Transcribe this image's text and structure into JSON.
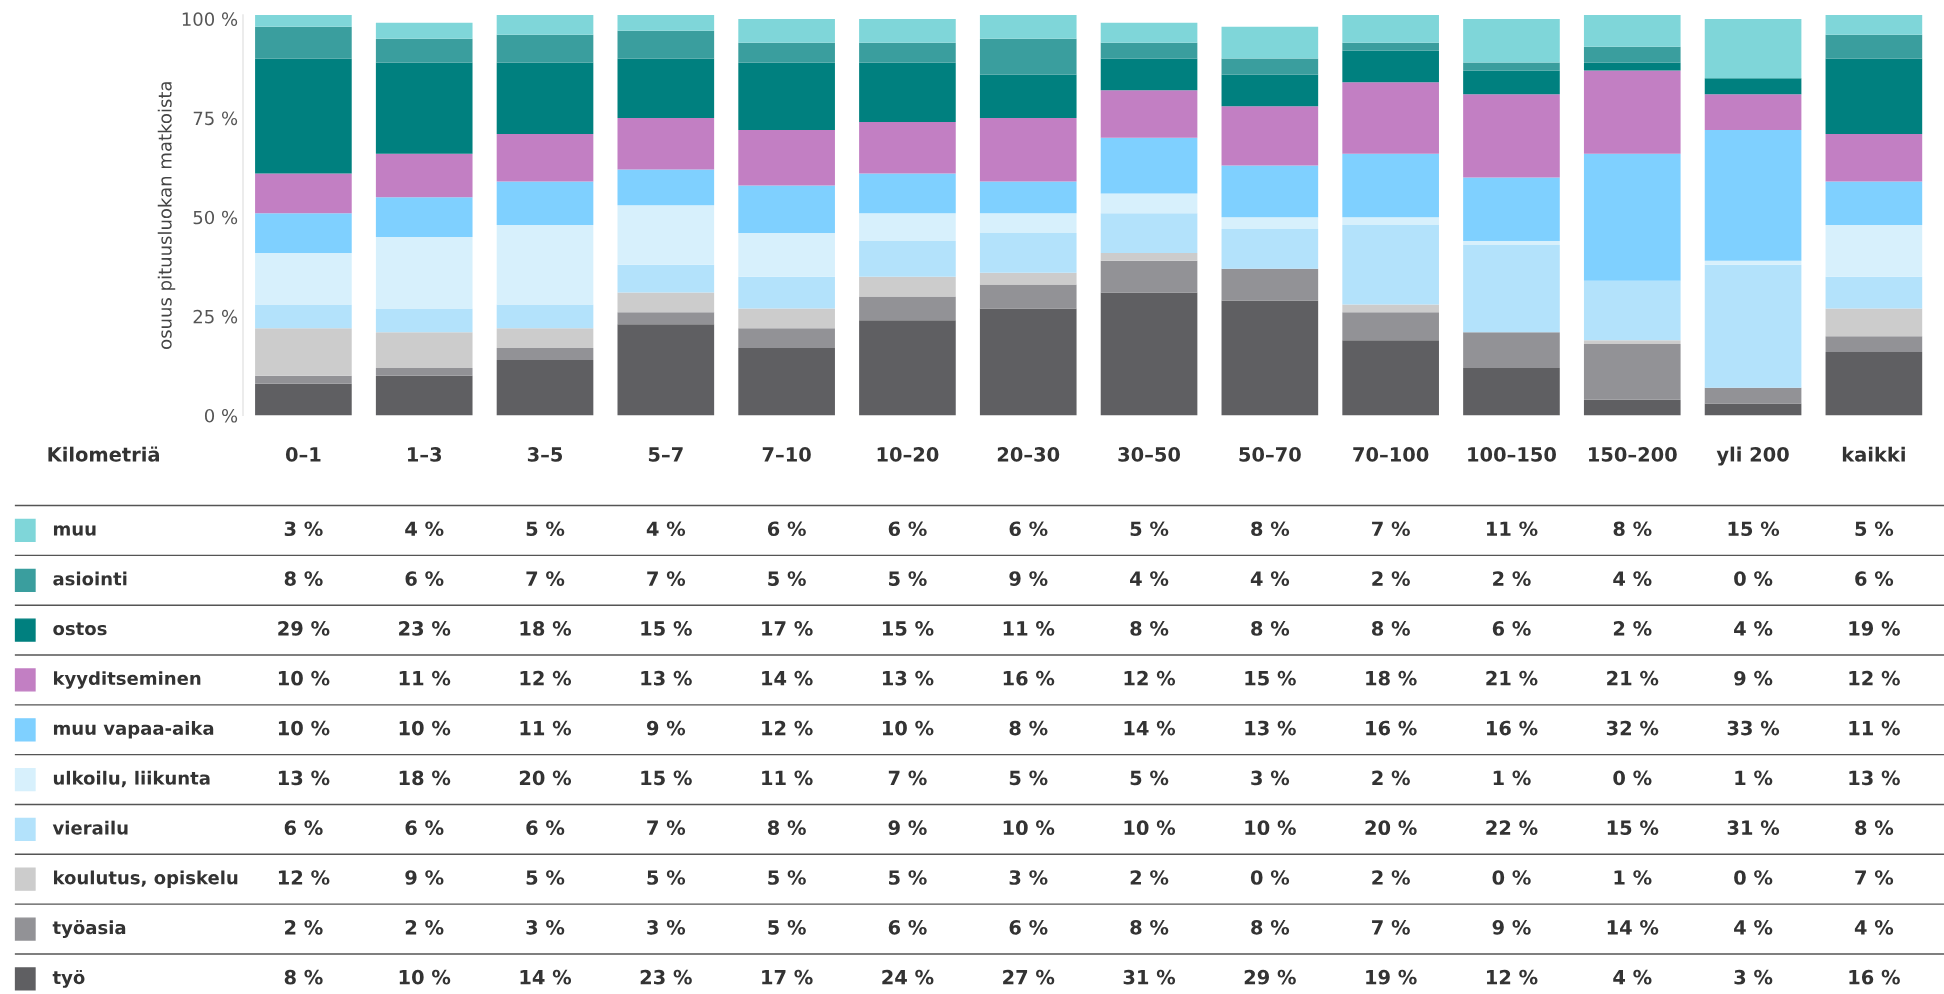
{
  "chart_data": {
    "type": "bar",
    "stacked": true,
    "ylabel": "osuus pituusluokan matkoista",
    "xlabel": "Kilometriä",
    "categories": [
      "0–1",
      "1–3",
      "3–5",
      "5–7",
      "7–10",
      "10–20",
      "20–30",
      "30–50",
      "50–70",
      "70–100",
      "100–150",
      "150–200",
      "yli 200",
      "kaikki"
    ],
    "ylim": [
      0,
      101
    ],
    "yticks": [
      {
        "value": 0,
        "label": "0 %"
      },
      {
        "value": 25,
        "label": "25 %"
      },
      {
        "value": 50,
        "label": "50 %"
      },
      {
        "value": 75,
        "label": "75 %"
      },
      {
        "value": 100,
        "label": "100 %"
      }
    ],
    "grid": false,
    "legend": "left",
    "series": [
      {
        "name": "työ",
        "color": "#5f5f62",
        "values": [
          8,
          10,
          14,
          23,
          17,
          24,
          27,
          31,
          29,
          19,
          12,
          4,
          3,
          16
        ],
        "value_labels": [
          "8 %",
          "10 %",
          "14 %",
          "23 %",
          "17 %",
          "24 %",
          "27 %",
          "31 %",
          "29 %",
          "19 %",
          "12 %",
          "4 %",
          "3 %",
          "16 %"
        ]
      },
      {
        "name": "työasia",
        "color": "#929296",
        "values": [
          2,
          2,
          3,
          3,
          5,
          6,
          6,
          8,
          8,
          7,
          9,
          14,
          4,
          4
        ],
        "value_labels": [
          "2 %",
          "2 %",
          "3 %",
          "3 %",
          "5 %",
          "6 %",
          "6 %",
          "8 %",
          "8 %",
          "7 %",
          "9 %",
          "14 %",
          "4 %",
          "4 %"
        ]
      },
      {
        "name": "koulutus, opiskelu",
        "color": "#cccccc",
        "values": [
          12,
          9,
          5,
          5,
          5,
          5,
          3,
          2,
          0,
          2,
          0,
          1,
          0,
          7
        ],
        "value_labels": [
          "12 %",
          "9 %",
          "5 %",
          "5 %",
          "5 %",
          "5 %",
          "3 %",
          "2 %",
          "0 %",
          "2 %",
          "0 %",
          "1 %",
          "0 %",
          "7 %"
        ]
      },
      {
        "name": "vierailu",
        "color": "#b3e2fb",
        "values": [
          6,
          6,
          6,
          7,
          8,
          9,
          10,
          10,
          10,
          20,
          22,
          15,
          31,
          8
        ],
        "value_labels": [
          "6 %",
          "6 %",
          "6 %",
          "7 %",
          "8 %",
          "9 %",
          "10 %",
          "10 %",
          "10 %",
          "20 %",
          "22 %",
          "15 %",
          "31 %",
          "8 %"
        ]
      },
      {
        "name": "ulkoilu, liikunta",
        "color": "#d7f0fc",
        "values": [
          13,
          18,
          20,
          15,
          11,
          7,
          5,
          5,
          3,
          2,
          1,
          0,
          1,
          13
        ],
        "value_labels": [
          "13 %",
          "18 %",
          "20 %",
          "15 %",
          "11 %",
          "7 %",
          "5 %",
          "5 %",
          "3 %",
          "2 %",
          "1 %",
          "0 %",
          "1 %",
          "13 %"
        ]
      },
      {
        "name": "muu vapaa-aika",
        "color": "#7fd0ff",
        "values": [
          10,
          10,
          11,
          9,
          12,
          10,
          8,
          14,
          13,
          16,
          16,
          32,
          33,
          11
        ],
        "value_labels": [
          "10 %",
          "10 %",
          "11 %",
          "9 %",
          "12 %",
          "10 %",
          "8 %",
          "14 %",
          "13 %",
          "16 %",
          "16 %",
          "32 %",
          "33 %",
          "11 %"
        ]
      },
      {
        "name": "kyyditseminen",
        "color": "#c27fc3",
        "values": [
          10,
          11,
          12,
          13,
          14,
          13,
          16,
          12,
          15,
          18,
          21,
          21,
          9,
          12
        ],
        "value_labels": [
          "10 %",
          "11 %",
          "12 %",
          "13 %",
          "14 %",
          "13 %",
          "16 %",
          "12 %",
          "15 %",
          "18 %",
          "21 %",
          "21 %",
          "9 %",
          "12 %"
        ]
      },
      {
        "name": "ostos",
        "color": "#00807f",
        "values": [
          29,
          23,
          18,
          15,
          17,
          15,
          11,
          8,
          8,
          8,
          6,
          2,
          4,
          19
        ],
        "value_labels": [
          "29 %",
          "23 %",
          "18 %",
          "15 %",
          "17 %",
          "15 %",
          "11 %",
          "8 %",
          "8 %",
          "8 %",
          "6 %",
          "2 %",
          "4 %",
          "19 %"
        ]
      },
      {
        "name": "asiointi",
        "color": "#3a9e9e",
        "values": [
          8,
          6,
          7,
          7,
          5,
          5,
          9,
          4,
          4,
          2,
          2,
          4,
          0,
          6
        ],
        "value_labels": [
          "8 %",
          "6 %",
          "7 %",
          "7 %",
          "5 %",
          "5 %",
          "9 %",
          "4 %",
          "4 %",
          "2 %",
          "2 %",
          "4 %",
          "0 %",
          "6 %"
        ]
      },
      {
        "name": "muu",
        "color": "#7fd6d9",
        "values": [
          3,
          4,
          5,
          4,
          6,
          6,
          6,
          5,
          8,
          7,
          11,
          8,
          15,
          5
        ],
        "value_labels": [
          "3 %",
          "4 %",
          "5 %",
          "4 %",
          "6 %",
          "6 %",
          "6 %",
          "5 %",
          "8 %",
          "7 %",
          "11 %",
          "8 %",
          "15 %",
          "5 %"
        ]
      }
    ]
  }
}
